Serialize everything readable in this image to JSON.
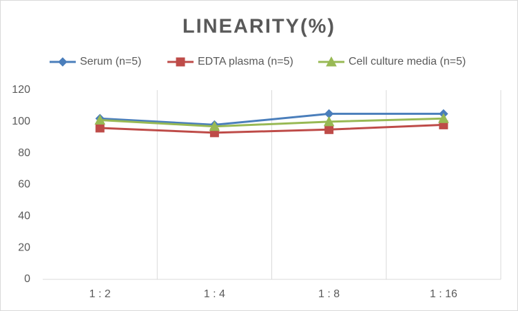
{
  "chart_data": {
    "type": "line",
    "title": "LINEARITY(%)",
    "categories": [
      "1 : 2",
      "1 : 4",
      "1 : 8",
      "1 : 16"
    ],
    "series": [
      {
        "name": "Serum (n=5)",
        "color": "#4a7ebb",
        "marker": "diamond",
        "values": [
          102,
          98,
          105,
          105
        ]
      },
      {
        "name": "EDTA plasma (n=5)",
        "color": "#be4b48",
        "marker": "square",
        "values": [
          96,
          93,
          95,
          98
        ]
      },
      {
        "name": "Cell culture media (n=5)",
        "color": "#98b954",
        "marker": "triangle",
        "values": [
          101,
          97,
          100,
          102
        ]
      }
    ],
    "ylim": [
      0,
      120
    ],
    "yticks": [
      0,
      20,
      40,
      60,
      80,
      100,
      120
    ],
    "legend": "top"
  }
}
